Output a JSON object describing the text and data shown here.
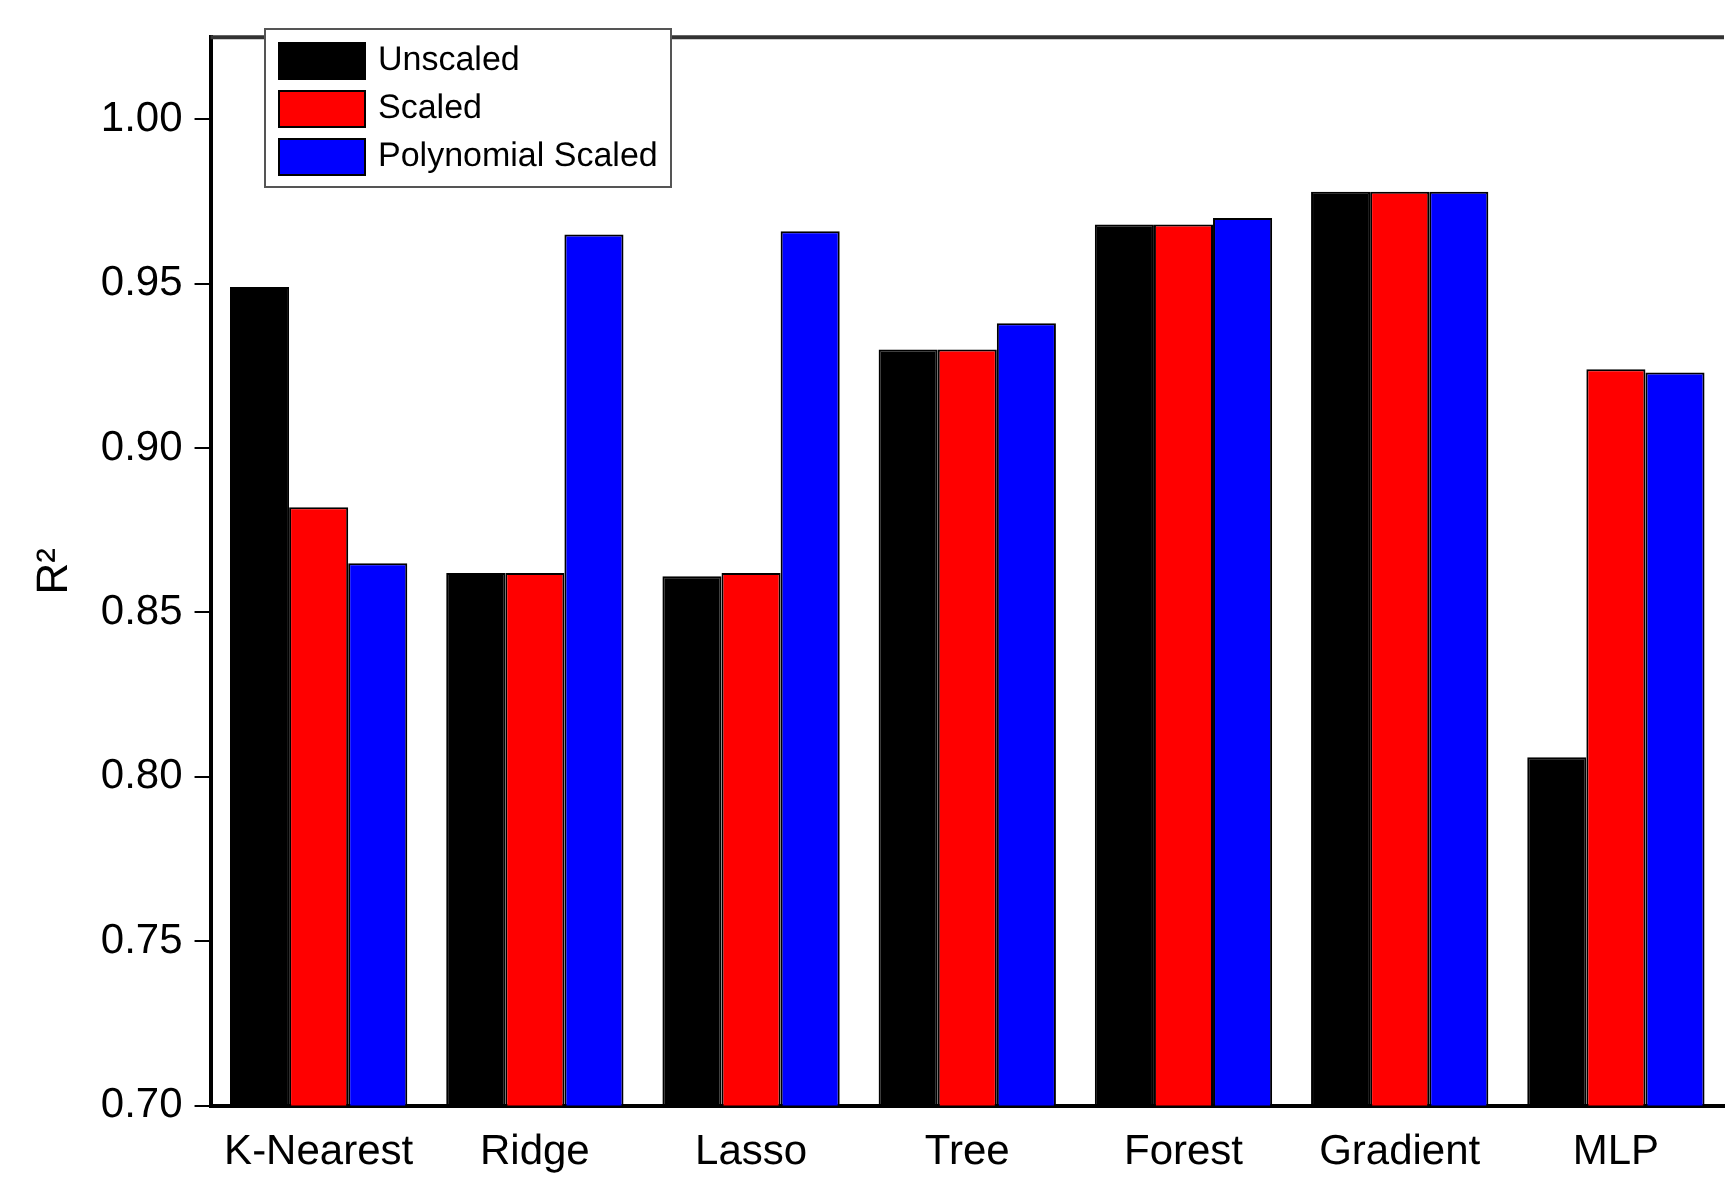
{
  "chart_data": {
    "type": "bar",
    "ylabel": "R²",
    "categories": [
      "K-Nearest",
      "Ridge",
      "Lasso",
      "Tree",
      "Forest",
      "Gradient",
      "MLP"
    ],
    "series": [
      {
        "name": "Unscaled",
        "color": "#000000",
        "values": [
          0.949,
          0.862,
          0.861,
          0.93,
          0.968,
          0.978,
          0.806
        ]
      },
      {
        "name": "Scaled",
        "color": "#ff0000",
        "values": [
          0.882,
          0.862,
          0.862,
          0.93,
          0.968,
          0.978,
          0.924
        ]
      },
      {
        "name": "Polynomial Scaled",
        "color": "#0000ff",
        "values": [
          0.865,
          0.965,
          0.966,
          0.938,
          0.97,
          0.978,
          0.923
        ]
      }
    ],
    "ylim": [
      0.7,
      1.025
    ],
    "yticks": [
      {
        "value": 0.7,
        "label": "0.70"
      },
      {
        "value": 0.75,
        "label": "0.75"
      },
      {
        "value": 0.8,
        "label": "0.80"
      },
      {
        "value": 0.85,
        "label": "0.85"
      },
      {
        "value": 0.9,
        "label": "0.90"
      },
      {
        "value": 0.95,
        "label": "0.95"
      },
      {
        "value": 1.0,
        "label": "1.00"
      }
    ],
    "grid": false,
    "legend": "top left"
  }
}
